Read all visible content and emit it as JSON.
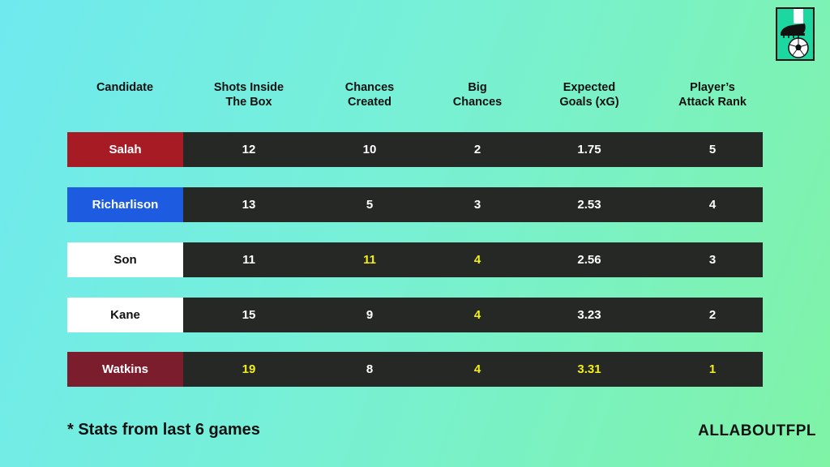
{
  "headers": [
    "Candidate",
    "Shots Inside\nThe Box",
    "Chances\nCreated",
    "Big\nChances",
    "Expected\nGoals (xG)",
    "Player’s\nAttack Rank"
  ],
  "rows": [
    {
      "name": "Salah",
      "name_bg": "#a71c24",
      "name_color": "#ffffff",
      "values": [
        "12",
        "10",
        "2",
        "1.75",
        "5"
      ],
      "highlight": [
        false,
        false,
        false,
        false,
        false
      ]
    },
    {
      "name": "Richarlison",
      "name_bg": "#1d5be0",
      "name_color": "#ffffff",
      "values": [
        "13",
        "5",
        "3",
        "2.53",
        "4"
      ],
      "highlight": [
        false,
        false,
        false,
        false,
        false
      ]
    },
    {
      "name": "Son",
      "name_bg": "#ffffff",
      "name_color": "#111111",
      "values": [
        "11",
        "11",
        "4",
        "2.56",
        "3"
      ],
      "highlight": [
        false,
        true,
        true,
        false,
        false
      ]
    },
    {
      "name": "Kane",
      "name_bg": "#ffffff",
      "name_color": "#111111",
      "values": [
        "15",
        "9",
        "4",
        "3.23",
        "2"
      ],
      "highlight": [
        false,
        false,
        true,
        false,
        false
      ]
    },
    {
      "name": "Watkins",
      "name_bg": "#7c1d2e",
      "name_color": "#ffffff",
      "values": [
        "19",
        "8",
        "4",
        "3.31",
        "1"
      ],
      "highlight": [
        true,
        false,
        true,
        true,
        true
      ]
    }
  ],
  "footnote": "*  Stats from last 6 games",
  "brand": "ALLABOUTFPL",
  "logo_icon": "boot-and-ball-icon",
  "colors": {
    "row_bg": "#262826",
    "highlight": "#f3ef1a",
    "value": "#ffffff"
  }
}
